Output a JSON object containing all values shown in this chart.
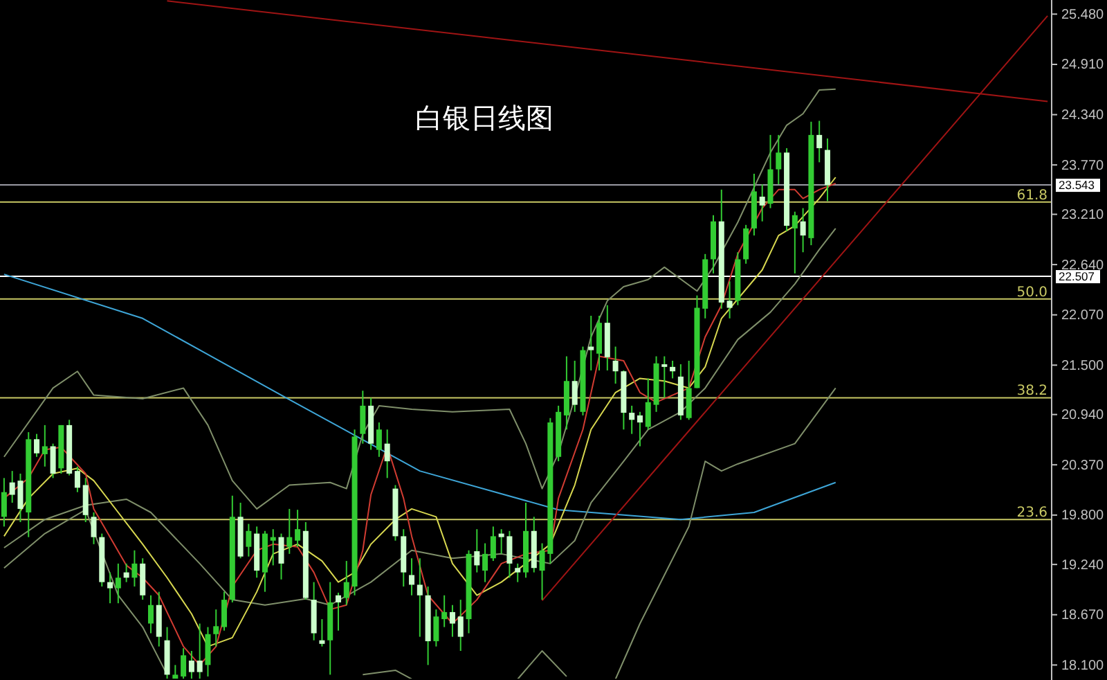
{
  "chart_data": {
    "type": "candlestick",
    "title": "白银日线图",
    "color": "#33cc33",
    "tick_labels": "y",
    "colors": [
      "#33cc33",
      "#ccffcc",
      "#ccffcc",
      "#33cc33",
      "#ccffcc",
      "#33cc33",
      "#ccffcc",
      "#33cc33",
      "#ccffcc",
      "#ccffcc",
      "#ccffcc",
      "#ccffcc",
      "#ccffcc",
      "#ccffcc",
      "#33cc33",
      "#ccffcc",
      "#33cc33",
      "#ccffcc",
      "#33cc33",
      "#ccffcc",
      "#ccffcc",
      "#33cc33",
      "#33cc33",
      "#ccffcc",
      "#ccffcc",
      "#33cc33",
      "#33cc33",
      "#33cc33",
      "#33cc33",
      "#ccffcc",
      "#33cc33",
      "#ccffcc",
      "#33cc33",
      "#33cc33",
      "#ccffcc",
      "#33cc33",
      "#33cc33",
      "#ccffcc",
      "#ccffcc",
      "#ccffcc",
      "#33cc33",
      "#ccffcc",
      "#33cc33",
      "#33cc33",
      "#33cc33",
      "#ccffcc",
      "#33cc33",
      "#ccffcc",
      "#ccffcc",
      "#ccffcc",
      "#ccffcc",
      "#ccffcc",
      "#ccffcc",
      "#33cc33",
      "#33cc33",
      "#ccffcc",
      "#ccffcc",
      "#33cc33",
      "#ccffcc",
      "#33cc33",
      "#33cc33",
      "#ccffcc",
      "#ccffcc",
      "#ccffcc",
      "#33cc33",
      "#ccffcc",
      "#33cc33",
      "#33cc33",
      "#33cc33",
      "#33cc33",
      "#ccffcc",
      "#33cc33",
      "#ccffcc",
      "#33cc33",
      "#ccffcc",
      "#ccffcc",
      "#ccffcc",
      "#ccffcc",
      "#ccffcc",
      "#33cc33",
      "#33cc33",
      "#ccffcc",
      "#ccffcc",
      "#ccffcc",
      "#33cc33",
      "#33cc33",
      "#33cc33",
      "#33cc33",
      "#ccffcc",
      "#ccffcc",
      "#33cc33",
      "#33cc33",
      "#33cc33",
      "#ccffcc",
      "#33cc33",
      "#33cc33",
      "#ccffcc",
      "#33cc33",
      "#ccffcc",
      "#33cc33",
      "#ccffcc",
      "#ccffcc",
      null,
      null,
      null,
      null,
      null,
      null,
      null,
      null,
      null,
      null,
      null,
      null,
      null,
      null,
      null,
      null,
      null,
      null,
      null,
      null,
      null,
      null,
      null,
      null,
      null,
      null,
      null
    ],
    "categories": [
      null,
      null,
      null,
      null,
      null,
      null,
      null,
      null,
      null,
      null,
      null,
      null,
      null,
      null,
      null,
      null,
      null,
      null,
      null,
      null,
      null,
      null,
      null,
      null,
      null,
      null,
      null,
      null,
      null,
      null,
      null,
      null,
      null,
      null,
      null,
      null,
      null,
      null,
      null,
      null,
      null,
      null,
      null,
      null,
      null,
      null,
      null,
      null,
      null,
      null,
      null,
      null,
      null,
      null,
      null,
      null,
      null,
      null,
      null,
      null,
      null,
      null,
      null,
      null,
      null,
      null,
      null,
      null,
      null,
      null,
      null,
      null,
      null,
      null,
      null,
      null,
      null,
      null,
      null,
      null,
      null,
      null,
      null,
      null,
      null,
      null,
      null,
      null,
      null,
      null,
      null,
      null,
      null,
      null,
      null,
      null,
      null,
      null,
      null,
      null,
      null,
      null,
      null,
      null,
      null,
      null,
      null,
      null,
      null,
      null,
      null,
      null,
      null,
      null,
      null,
      null,
      null,
      null,
      null,
      null,
      null,
      null,
      null,
      null,
      null,
      null,
      null,
      null,
      null
    ],
    "ohlc": [
      [
        19.78,
        20.22,
        19.67,
        20.06
      ],
      [
        20.17,
        20.3,
        19.94,
        20.03
      ],
      [
        20.19,
        20.27,
        19.72,
        19.87
      ],
      [
        19.83,
        20.74,
        19.55,
        20.66
      ],
      [
        20.66,
        20.72,
        20.46,
        20.5
      ],
      [
        20.49,
        20.82,
        20.35,
        20.58
      ],
      [
        20.58,
        20.61,
        20.22,
        20.27
      ],
      [
        20.33,
        20.82,
        20.27,
        20.82
      ],
      [
        20.82,
        20.88,
        20.25,
        20.27
      ],
      [
        20.3,
        20.35,
        20.06,
        20.11
      ],
      [
        20.14,
        20.22,
        19.72,
        19.8
      ],
      [
        19.78,
        19.83,
        19.47,
        19.55
      ],
      [
        19.55,
        19.59,
        18.99,
        19.04
      ],
      [
        19.04,
        19.15,
        18.8,
        18.97
      ],
      [
        18.97,
        19.25,
        18.8,
        19.09
      ],
      [
        19.15,
        19.25,
        19.04,
        19.09
      ],
      [
        19.09,
        19.4,
        18.99,
        19.25
      ],
      [
        19.25,
        19.31,
        18.84,
        18.89
      ],
      [
        18.57,
        18.89,
        18.46,
        18.78
      ],
      [
        18.78,
        18.93,
        18.31,
        18.42
      ],
      [
        18.38,
        18.53,
        17.94,
        17.99
      ],
      [
        17.94,
        18.1,
        17.94,
        17.99
      ],
      [
        17.97,
        18.29,
        17.94,
        18.21
      ],
      [
        18.15,
        18.26,
        17.94,
        18.02
      ],
      [
        18.15,
        18.57,
        17.94,
        18.02
      ],
      [
        18.1,
        18.53,
        17.97,
        18.45
      ],
      [
        18.45,
        18.73,
        18.31,
        18.54
      ],
      [
        18.53,
        18.93,
        18.49,
        18.84
      ],
      [
        18.84,
        20.02,
        18.81,
        19.78
      ],
      [
        19.78,
        19.94,
        19.31,
        19.33
      ],
      [
        19.44,
        19.7,
        19.33,
        19.62
      ],
      [
        19.59,
        19.67,
        19.09,
        19.17
      ],
      [
        19.15,
        19.62,
        18.93,
        19.59
      ],
      [
        19.51,
        19.64,
        19.23,
        19.55
      ],
      [
        19.55,
        19.59,
        19.07,
        19.25
      ],
      [
        19.44,
        19.87,
        19.36,
        19.55
      ],
      [
        19.51,
        19.86,
        19.44,
        19.64
      ],
      [
        19.62,
        19.72,
        18.84,
        18.86
      ],
      [
        18.84,
        19.04,
        18.38,
        18.46
      ],
      [
        18.38,
        18.62,
        18.31,
        18.34
      ],
      [
        18.38,
        19.04,
        17.99,
        18.81
      ],
      [
        18.89,
        18.92,
        18.49,
        18.81
      ],
      [
        18.86,
        19.28,
        18.78,
        19.04
      ],
      [
        18.99,
        20.77,
        18.89,
        20.69
      ],
      [
        20.72,
        21.21,
        20.61,
        21.04
      ],
      [
        21.04,
        21.13,
        20.54,
        20.61
      ],
      [
        20.54,
        20.85,
        20.46,
        20.77
      ],
      [
        20.61,
        20.77,
        20.22,
        20.41
      ],
      [
        20.1,
        20.14,
        19.51,
        19.56
      ],
      [
        19.56,
        19.64,
        18.99,
        19.15
      ],
      [
        19.12,
        19.31,
        18.89,
        19.01
      ],
      [
        19.01,
        19.31,
        18.42,
        18.89
      ],
      [
        18.89,
        18.99,
        18.1,
        18.37
      ],
      [
        18.37,
        18.73,
        18.31,
        18.65
      ],
      [
        18.62,
        18.89,
        18.53,
        18.7
      ],
      [
        18.7,
        18.78,
        18.42,
        18.57
      ],
      [
        18.65,
        18.84,
        18.26,
        18.42
      ],
      [
        18.62,
        19.4,
        18.46,
        19.36
      ],
      [
        19.39,
        19.64,
        19.15,
        19.23
      ],
      [
        19.17,
        19.48,
        19.04,
        19.36
      ],
      [
        19.31,
        19.67,
        19.28,
        19.56
      ],
      [
        19.59,
        19.64,
        19.36,
        19.55
      ],
      [
        19.56,
        19.62,
        19.09,
        19.25
      ],
      [
        19.2,
        19.25,
        19.04,
        19.15
      ],
      [
        19.15,
        19.94,
        19.09,
        19.62
      ],
      [
        19.62,
        19.78,
        19.15,
        19.2
      ],
      [
        19.17,
        19.48,
        18.84,
        19.4
      ],
      [
        19.36,
        20.9,
        19.25,
        20.85
      ],
      [
        20.46,
        21.04,
        20.41,
        20.97
      ],
      [
        20.93,
        21.6,
        20.77,
        21.32
      ],
      [
        21.32,
        21.55,
        20.97,
        21.05
      ],
      [
        20.97,
        21.71,
        20.93,
        21.67
      ],
      [
        21.71,
        22.06,
        21.44,
        21.67
      ],
      [
        21.63,
        22.06,
        21.44,
        21.98
      ],
      [
        21.98,
        22.18,
        21.44,
        21.59
      ],
      [
        21.55,
        21.71,
        21.29,
        21.43
      ],
      [
        21.43,
        21.44,
        20.77,
        20.96
      ],
      [
        20.96,
        21.04,
        20.72,
        20.88
      ],
      [
        20.93,
        20.97,
        20.58,
        20.85
      ],
      [
        20.8,
        21.35,
        20.77,
        21.08
      ],
      [
        21.05,
        21.6,
        20.97,
        21.52
      ],
      [
        21.51,
        21.6,
        21.13,
        21.48
      ],
      [
        21.48,
        21.55,
        21.35,
        21.43
      ],
      [
        21.37,
        21.51,
        20.88,
        20.93
      ],
      [
        20.9,
        21.55,
        20.88,
        21.24
      ],
      [
        21.24,
        22.29,
        21.24,
        22.15
      ],
      [
        22.14,
        22.76,
        22.03,
        22.7
      ],
      [
        22.7,
        23.2,
        22.54,
        23.13
      ],
      [
        23.13,
        23.49,
        22.14,
        22.21
      ],
      [
        22.23,
        22.45,
        22.03,
        22.15
      ],
      [
        22.23,
        22.78,
        22.18,
        22.7
      ],
      [
        22.7,
        23.09,
        22.65,
        23.05
      ],
      [
        23.05,
        23.67,
        22.97,
        23.47
      ],
      [
        23.41,
        23.55,
        23.13,
        23.31
      ],
      [
        23.33,
        24.11,
        23.28,
        23.72
      ],
      [
        23.72,
        24.11,
        23.55,
        23.91
      ],
      [
        23.91,
        23.96,
        23.02,
        23.08
      ],
      [
        23.05,
        23.24,
        22.54,
        23.2
      ],
      [
        23.13,
        23.28,
        22.78,
        22.97
      ],
      [
        22.94,
        24.26,
        22.86,
        24.11
      ],
      [
        24.11,
        24.27,
        23.8,
        23.96
      ],
      [
        23.94,
        24.07,
        23.36,
        23.54
      ],
      null,
      null,
      null,
      null,
      null,
      null,
      null,
      null,
      null,
      null,
      null,
      null,
      null,
      null,
      null,
      null,
      null,
      null,
      null,
      null,
      null,
      null,
      null,
      null,
      null,
      null,
      null
    ],
    "series": [
      {
        "type": "line",
        "color": "#3ea6d8",
        "values": [
          22.53,
          null,
          null,
          null,
          null,
          null,
          null,
          null,
          null,
          null,
          null,
          null,
          null,
          null,
          null,
          null,
          null,
          22.03,
          null,
          null,
          null,
          null,
          null,
          null,
          null,
          null,
          null,
          null,
          null,
          null,
          null,
          null,
          null,
          null,
          21.16,
          null,
          null,
          null,
          null,
          null,
          null,
          null,
          null,
          null,
          null,
          null,
          null,
          null,
          null,
          null,
          null,
          20.3,
          null,
          null,
          null,
          null,
          null,
          null,
          null,
          null,
          null,
          null,
          null,
          null,
          null,
          null,
          null,
          null,
          19.86,
          null,
          null,
          null,
          null,
          null,
          null,
          null,
          null,
          null,
          null,
          null,
          null,
          null,
          null,
          19.75,
          null,
          null,
          null,
          null,
          null,
          null,
          null,
          null,
          19.83,
          null,
          null,
          null,
          null,
          null,
          null,
          null,
          null,
          null,
          20.17,
          null,
          null,
          null,
          null,
          null,
          null,
          null,
          null,
          null,
          null,
          null,
          null,
          null,
          null,
          null,
          null,
          null,
          null,
          null,
          null,
          null,
          null,
          null,
          null,
          null,
          null
        ]
      },
      {
        "type": "line",
        "color": "#7f8f6a",
        "values": [
          20.46,
          null,
          null,
          null,
          null,
          null,
          21.24,
          null,
          null,
          21.43,
          null,
          21.16,
          null,
          null,
          null,
          null,
          null,
          21.12,
          null,
          null,
          null,
          null,
          21.24,
          null,
          null,
          20.82,
          null,
          null,
          20.19,
          null,
          null,
          19.87,
          null,
          null,
          null,
          20.14,
          null,
          null,
          null,
          null,
          20.17,
          null,
          20.1,
          null,
          20.72,
          null,
          21.04,
          null,
          null,
          null,
          21.0,
          null,
          null,
          null,
          null,
          20.97,
          null,
          null,
          null,
          null,
          null,
          null,
          21.0,
          null,
          20.61,
          null,
          20.1,
          null,
          20.5,
          null,
          21.13,
          null,
          21.82,
          null,
          22.23,
          null,
          22.39,
          null,
          null,
          22.47,
          null,
          22.61,
          null,
          null,
          null,
          22.34,
          null,
          22.61,
          null,
          null,
          23.12,
          null,
          null,
          null,
          23.91,
          null,
          24.22,
          null,
          24.35,
          null,
          24.62,
          null,
          24.63,
          null,
          null,
          null,
          null,
          null,
          null,
          null,
          null,
          null,
          null,
          null,
          null,
          null,
          null,
          null,
          null,
          null,
          null,
          null,
          null,
          null,
          null,
          null,
          null,
          null,
          null
        ]
      },
      {
        "type": "line",
        "color": "#7f8f6a",
        "values": [
          19.43,
          null,
          null,
          null,
          null,
          19.75,
          null,
          null,
          null,
          null,
          19.91,
          null,
          null,
          null,
          null,
          19.98,
          null,
          null,
          19.83,
          null,
          null,
          null,
          null,
          null,
          19.25,
          null,
          null,
          null,
          18.84,
          null,
          null,
          null,
          18.78,
          null,
          null,
          null,
          null,
          18.85,
          null,
          null,
          18.78,
          null,
          null,
          null,
          null,
          19.04,
          null,
          null,
          null,
          null,
          19.4,
          null,
          null,
          null,
          null,
          19.31,
          null,
          null,
          null,
          null,
          null,
          19.36,
          null,
          null,
          null,
          null,
          null,
          19.25,
          null,
          null,
          19.51,
          null,
          19.94,
          null,
          null,
          null,
          20.41,
          null,
          null,
          20.77,
          null,
          null,
          null,
          20.97,
          null,
          null,
          21.24,
          null,
          null,
          null,
          21.79,
          null,
          null,
          null,
          22.1,
          null,
          null,
          22.42,
          null,
          null,
          22.81,
          null,
          23.05,
          null,
          null,
          null,
          null,
          null,
          null,
          null,
          null,
          null,
          null,
          null,
          null,
          null,
          null,
          null,
          null,
          null,
          null,
          null,
          null,
          null,
          null,
          null,
          null,
          null,
          null
        ]
      },
      {
        "type": "line",
        "color": "#7f8f6a",
        "values": [
          19.2,
          null,
          null,
          null,
          null,
          19.59,
          null,
          null,
          null,
          null,
          19.86,
          null,
          null,
          null,
          18.89,
          null,
          null,
          18.53,
          null,
          null,
          17.99,
          null,
          null,
          null,
          null,
          null,
          null,
          null,
          null,
          null,
          null,
          null,
          null,
          null,
          null,
          null,
          null,
          null,
          null,
          null,
          null,
          null,
          null,
          null,
          null,
          null,
          null,
          null,
          null,
          null,
          null,
          null,
          null,
          null,
          null,
          null,
          null,
          null,
          null,
          null,
          null,
          null,
          null,
          null,
          null,
          null,
          null,
          null,
          null,
          null,
          null,
          null,
          null,
          null,
          null,
          null,
          null,
          null,
          null,
          null,
          null,
          null,
          null,
          null,
          null,
          null,
          null,
          null,
          null,
          null,
          null,
          null,
          null,
          null,
          null,
          null,
          null,
          null,
          null,
          null,
          null,
          null,
          null,
          null,
          null,
          null,
          null,
          null,
          null,
          null,
          null,
          null,
          null,
          null,
          null,
          null,
          null,
          null,
          null,
          null,
          null,
          null,
          null,
          null,
          null,
          null,
          null,
          null,
          null
        ]
      },
      {
        "type": "line",
        "color": "#7f8f6a",
        "values": [
          null,
          null,
          null,
          null,
          null,
          null,
          null,
          null,
          null,
          null,
          null,
          null,
          null,
          null,
          null,
          null,
          null,
          null,
          null,
          null,
          null,
          null,
          null,
          null,
          null,
          null,
          null,
          null,
          null,
          null,
          null,
          null,
          null,
          null,
          null,
          null,
          null,
          null,
          null,
          null,
          null,
          null,
          null,
          null,
          17.99,
          null,
          null,
          null,
          18.04,
          null,
          17.94,
          null,
          null,
          null,
          null,
          null,
          null,
          null,
          null,
          null,
          null,
          null,
          null,
          null,
          null,
          null,
          null,
          null,
          null,
          null,
          null,
          null,
          null,
          null,
          null,
          null,
          null,
          null,
          null,
          null,
          null,
          null,
          null,
          null,
          null,
          null,
          null,
          null,
          null,
          null,
          null,
          null,
          null,
          null,
          null,
          null,
          null,
          null,
          null,
          null,
          null,
          null,
          null,
          null,
          null,
          null,
          null,
          null,
          null,
          null,
          null,
          null,
          null,
          null,
          null,
          null,
          null,
          null,
          null,
          null,
          null,
          null,
          null,
          null,
          null,
          null,
          null,
          null,
          null
        ]
      },
      {
        "type": "line",
        "color": "#7f8f6a",
        "values": [
          null,
          null,
          null,
          null,
          null,
          null,
          null,
          null,
          null,
          null,
          null,
          null,
          null,
          null,
          null,
          null,
          null,
          null,
          null,
          null,
          null,
          null,
          null,
          null,
          null,
          null,
          null,
          null,
          null,
          null,
          null,
          null,
          null,
          null,
          null,
          null,
          null,
          null,
          null,
          null,
          null,
          null,
          null,
          null,
          null,
          null,
          null,
          null,
          null,
          null,
          null,
          null,
          null,
          null,
          null,
          null,
          null,
          null,
          null,
          null,
          null,
          null,
          null,
          17.94,
          null,
          null,
          18.26,
          null,
          null,
          17.97,
          null,
          null,
          null,
          null,
          null,
          null,
          null,
          null,
          null,
          null,
          null,
          null,
          null,
          null,
          null,
          null,
          null,
          null,
          null,
          null,
          null,
          null,
          null,
          null,
          null,
          null,
          null,
          null,
          null,
          null,
          null,
          null,
          null,
          null,
          null,
          null,
          null,
          null,
          null,
          null,
          null,
          null,
          null,
          null,
          null,
          null,
          null,
          null,
          null,
          null,
          null,
          null,
          null,
          null,
          null,
          null,
          null,
          null,
          null
        ]
      },
      {
        "type": "line",
        "color": "#7f8f6a",
        "values": [
          null,
          null,
          null,
          null,
          null,
          null,
          null,
          null,
          null,
          null,
          null,
          null,
          null,
          null,
          null,
          null,
          null,
          null,
          null,
          null,
          null,
          null,
          null,
          null,
          null,
          null,
          null,
          null,
          null,
          null,
          null,
          null,
          null,
          null,
          null,
          null,
          null,
          null,
          null,
          null,
          null,
          null,
          null,
          null,
          null,
          null,
          null,
          null,
          null,
          null,
          null,
          null,
          null,
          null,
          null,
          null,
          null,
          null,
          null,
          null,
          null,
          null,
          null,
          null,
          null,
          null,
          null,
          null,
          null,
          null,
          null,
          null,
          null,
          null,
          null,
          17.94,
          null,
          null,
          18.57,
          null,
          null,
          null,
          null,
          null,
          19.67,
          null,
          20.41,
          null,
          20.3,
          null,
          20.38,
          null,
          null,
          null,
          null,
          null,
          null,
          20.61,
          null,
          null,
          null,
          null,
          21.24,
          null,
          null,
          null,
          null,
          null,
          null,
          null,
          null,
          null,
          null,
          null,
          null,
          null,
          null,
          null,
          null,
          null,
          null,
          null,
          null,
          null,
          null,
          null,
          null,
          null,
          null
        ]
      },
      {
        "type": "line",
        "color": "#d8d850",
        "values": [
          19.56,
          null,
          null,
          19.99,
          null,
          null,
          20.27,
          null,
          null,
          20.33,
          null,
          20.19,
          null,
          null,
          19.83,
          null,
          null,
          19.47,
          null,
          null,
          19.09,
          null,
          null,
          18.68,
          null,
          18.31,
          null,
          null,
          18.41,
          null,
          null,
          18.93,
          null,
          19.36,
          null,
          null,
          19.47,
          null,
          null,
          19.28,
          null,
          19.04,
          null,
          19.15,
          null,
          19.47,
          null,
          null,
          19.75,
          null,
          19.87,
          null,
          null,
          19.78,
          null,
          19.25,
          null,
          null,
          18.89,
          null,
          null,
          19.04,
          null,
          null,
          19.25,
          null,
          null,
          19.47,
          null,
          null,
          20.14,
          null,
          20.77,
          null,
          null,
          21.19,
          null,
          null,
          21.35,
          null,
          null,
          21.32,
          null,
          null,
          21.24,
          null,
          21.48,
          null,
          22.03,
          null,
          null,
          null,
          null,
          22.58,
          null,
          22.97,
          null,
          23.08,
          null,
          null,
          23.39,
          null,
          23.63,
          null,
          null,
          null,
          null,
          null,
          null,
          null,
          null,
          null,
          null,
          null,
          null,
          null,
          null,
          null,
          null,
          null,
          null,
          null,
          null,
          null,
          null,
          null,
          null,
          null,
          null
        ]
      },
      {
        "type": "line",
        "color": "#d23c32",
        "values": [
          19.99,
          null,
          null,
          20.22,
          null,
          20.54,
          null,
          20.57,
          null,
          null,
          20.27,
          19.87,
          null,
          null,
          null,
          19.23,
          null,
          19.09,
          null,
          18.89,
          null,
          null,
          18.31,
          null,
          18.1,
          null,
          18.31,
          null,
          18.99,
          null,
          null,
          19.4,
          null,
          19.47,
          null,
          null,
          19.44,
          null,
          19.15,
          null,
          18.73,
          null,
          18.78,
          null,
          19.4,
          20.03,
          null,
          20.58,
          null,
          19.99,
          19.56,
          null,
          18.89,
          null,
          null,
          18.57,
          null,
          null,
          18.84,
          null,
          null,
          19.25,
          null,
          null,
          19.36,
          null,
          null,
          19.4,
          19.99,
          null,
          null,
          20.77,
          null,
          21.6,
          null,
          null,
          21.55,
          null,
          21.19,
          null,
          21.08,
          null,
          null,
          null,
          21.24,
          null,
          21.82,
          null,
          22.18,
          null,
          22.76,
          null,
          null,
          23.28,
          null,
          23.49,
          null,
          23.49,
          23.39,
          null,
          23.49,
          null,
          23.56,
          null,
          null,
          null,
          null,
          null,
          null,
          null,
          null,
          null,
          null,
          null,
          null,
          null,
          null,
          null,
          null,
          null,
          null,
          null,
          null,
          null,
          null,
          null,
          null,
          null,
          null
        ]
      },
      {
        "type": "line",
        "color": "#a01414",
        "values": [
          null,
          null,
          null,
          null,
          null,
          null,
          null,
          null,
          null,
          null,
          null,
          null,
          null,
          null,
          null,
          null,
          null,
          null,
          null,
          null,
          null,
          null,
          null,
          null,
          null,
          null,
          null,
          null,
          null,
          null,
          null,
          null,
          null,
          null,
          null,
          null,
          null,
          null,
          null,
          null,
          null,
          null,
          null,
          null,
          null,
          null,
          null,
          null,
          null,
          null,
          null,
          null,
          null,
          null,
          null,
          null,
          null,
          null,
          null,
          null,
          null,
          null,
          null,
          null,
          null,
          null,
          18.83,
          null,
          null,
          null,
          null,
          null,
          null,
          null,
          null,
          null,
          null,
          null,
          null,
          null,
          null,
          null,
          null,
          null,
          null,
          null,
          null,
          null,
          null,
          null,
          null,
          null,
          null,
          null,
          null,
          null,
          null,
          null,
          null,
          null,
          null,
          null,
          null,
          null,
          null,
          null,
          null,
          null,
          null,
          null,
          null,
          null,
          null,
          null,
          null,
          null,
          null,
          null,
          null,
          null,
          null,
          null,
          null,
          null,
          null,
          null,
          null,
          null,
          25.46
        ]
      },
      {
        "type": "line",
        "color": "#a01414",
        "values": [
          null,
          null,
          null,
          null,
          null,
          null,
          null,
          null,
          null,
          null,
          null,
          null,
          null,
          null,
          null,
          null,
          null,
          null,
          null,
          null,
          25.63,
          null,
          null,
          null,
          null,
          null,
          null,
          null,
          null,
          null,
          null,
          null,
          null,
          null,
          null,
          null,
          null,
          null,
          null,
          null,
          null,
          null,
          null,
          null,
          null,
          null,
          null,
          null,
          null,
          null,
          null,
          null,
          null,
          null,
          null,
          null,
          null,
          null,
          null,
          null,
          null,
          null,
          null,
          null,
          null,
          null,
          null,
          null,
          null,
          null,
          null,
          null,
          null,
          null,
          null,
          null,
          null,
          null,
          null,
          null,
          null,
          null,
          null,
          null,
          null,
          null,
          null,
          null,
          null,
          null,
          null,
          null,
          null,
          null,
          null,
          null,
          null,
          null,
          null,
          null,
          null,
          null,
          null,
          null,
          null,
          null,
          null,
          null,
          null,
          null,
          null,
          null,
          null,
          null,
          null,
          null,
          null,
          null,
          null,
          null,
          null,
          null,
          null,
          null,
          null,
          null,
          null,
          null,
          24.49
        ]
      }
    ],
    "ylim": [
      17.93,
      25.64
    ],
    "yticks": [
      {
        "value": 25.48,
        "label": "25.480"
      },
      {
        "value": 24.91,
        "label": "24.910"
      },
      {
        "value": 24.34,
        "label": "24.340"
      },
      {
        "value": 23.77,
        "label": "23.770"
      },
      {
        "value": 23.21,
        "label": "23.210"
      },
      {
        "value": 22.64,
        "label": "22.640"
      },
      {
        "value": 22.07,
        "label": "22.070"
      },
      {
        "value": 21.5,
        "label": "21.500"
      },
      {
        "value": 20.94,
        "label": "20.940"
      },
      {
        "value": 20.37,
        "label": "20.370"
      },
      {
        "value": 19.8,
        "label": "19.800"
      },
      {
        "value": 19.24,
        "label": "19.240"
      },
      {
        "value": 18.67,
        "label": "18.670"
      },
      {
        "value": 18.1,
        "label": "18.100"
      }
    ],
    "ref_lines": [
      {
        "axis": "y",
        "value": 23.543,
        "label": "23.543",
        "color": "#9a9aa4"
      },
      {
        "axis": "y",
        "value": 22.507,
        "label": "22.507",
        "color": "#ffffff"
      },
      {
        "axis": "y",
        "value": 23.35,
        "color": "#c8c864"
      },
      {
        "axis": "y",
        "value": 22.25,
        "color": "#c8c864"
      },
      {
        "axis": "y",
        "value": 21.13,
        "color": "#c8c864"
      },
      {
        "axis": "y",
        "value": 19.75,
        "color": "#c8c864"
      }
    ],
    "annotations": [
      {
        "text": "61.8",
        "y": 23.35
      },
      {
        "text": "50.0",
        "y": 22.25
      },
      {
        "text": "38.2",
        "y": 21.13
      },
      {
        "text": "23.6",
        "y": 19.75
      }
    ]
  }
}
